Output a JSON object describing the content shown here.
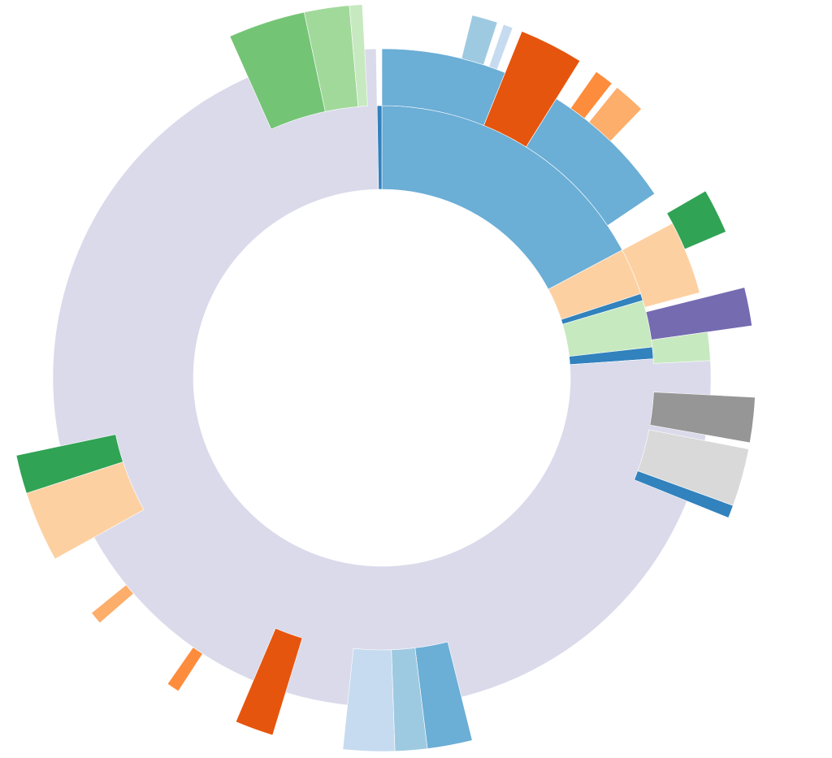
{
  "chart_data": {
    "type": "sunburst",
    "arcs": [
      {
        "depth": 1,
        "levels": 1,
        "start": 0,
        "value": 62,
        "color": "#6baed6"
      },
      {
        "depth": 1,
        "levels": 1,
        "start": 62,
        "value": 10,
        "color": "#fdd0a2"
      },
      {
        "depth": 1,
        "levels": 1,
        "start": 72,
        "value": 1.5,
        "color": "#3182bd"
      },
      {
        "depth": 1,
        "levels": 1,
        "start": 73.5,
        "value": 10,
        "color": "#c7e9c0"
      },
      {
        "depth": 1,
        "levels": 1,
        "start": 83.5,
        "value": 2.5,
        "color": "#3182bd"
      },
      {
        "depth": 1,
        "levels": 2,
        "start": 86,
        "value": 273,
        "color": "#dadaeb"
      },
      {
        "depth": 1,
        "levels": 1,
        "start": 359,
        "value": 1,
        "color": "#3182bd"
      },
      {
        "depth": 2,
        "levels": 1,
        "start": 0,
        "value": 22,
        "color": "#6baed6"
      },
      {
        "depth": 2,
        "levels": 2,
        "start": 22,
        "value": 10,
        "color": "#e6550d"
      },
      {
        "depth": 2,
        "levels": 1,
        "start": 32,
        "value": 24,
        "color": "#6baed6"
      },
      {
        "depth": 2,
        "levels": 1,
        "start": 62,
        "value": 13,
        "color": "#fdd0a2"
      },
      {
        "depth": 2,
        "levels": 2,
        "start": 76,
        "value": 6,
        "color": "#756bb1"
      },
      {
        "depth": 2,
        "levels": 1,
        "start": 82,
        "value": 5,
        "color": "#c7e9c0"
      },
      {
        "depth": 2,
        "levels": 2,
        "start": 93,
        "value": 7,
        "color": "#969696"
      },
      {
        "depth": 2,
        "levels": 2,
        "start": 101,
        "value": 9,
        "color": "#d9d9d9"
      },
      {
        "depth": 2,
        "levels": 2,
        "start": 110,
        "value": 2,
        "color": "#3182bd"
      },
      {
        "depth": 2,
        "levels": 2,
        "start": 166,
        "value": 7,
        "color": "#6baed6"
      },
      {
        "depth": 2,
        "levels": 2,
        "start": 173,
        "value": 5,
        "color": "#9ecae1"
      },
      {
        "depth": 2,
        "levels": 2,
        "start": 178,
        "value": 8,
        "color": "#c6dbef"
      },
      {
        "depth": 2,
        "levels": 2,
        "start": 197,
        "value": 6,
        "color": "#e6550d"
      },
      {
        "depth": 2,
        "levels": 2,
        "start": 241,
        "value": 11,
        "color": "#fdd0a2"
      },
      {
        "depth": 2,
        "levels": 2,
        "start": 252,
        "value": 6,
        "color": "#31a354"
      },
      {
        "depth": 2,
        "levels": 2,
        "start": 336,
        "value": 12,
        "color": "#74c476"
      },
      {
        "depth": 2,
        "levels": 2,
        "start": 348,
        "value": 7,
        "color": "#a1d99b"
      },
      {
        "depth": 2,
        "levels": 2,
        "start": 355,
        "value": 2,
        "color": "#c7e9c0"
      },
      {
        "depth": 3,
        "levels": 1,
        "start": 14,
        "value": 4,
        "color": "#9ecae1"
      },
      {
        "depth": 3,
        "levels": 1,
        "start": 19,
        "value": 1.5,
        "color": "#c6dbef"
      },
      {
        "depth": 3,
        "levels": 1,
        "start": 35,
        "value": 3,
        "color": "#fd8d3c"
      },
      {
        "depth": 3,
        "levels": 1,
        "start": 39,
        "value": 5,
        "color": "#fdae6b"
      },
      {
        "depth": 3,
        "levels": 1,
        "start": 60,
        "value": 7,
        "color": "#31a354"
      },
      {
        "depth": 3,
        "levels": 1,
        "start": 213,
        "value": 2,
        "color": "#fd8d3c"
      },
      {
        "depth": 3,
        "levels": 1,
        "start": 229,
        "value": 2,
        "color": "#fdae6b"
      }
    ]
  }
}
